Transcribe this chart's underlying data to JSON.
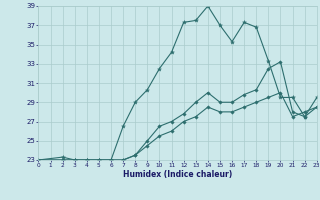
{
  "xlabel": "Humidex (Indice chaleur)",
  "bg_color": "#cce8ea",
  "grid_color": "#aacccc",
  "line_color": "#2d6e6e",
  "ylim": [
    23,
    39
  ],
  "xlim": [
    0,
    23
  ],
  "yticks": [
    23,
    25,
    27,
    29,
    31,
    33,
    35,
    37,
    39
  ],
  "xticks": [
    0,
    1,
    2,
    3,
    4,
    5,
    6,
    7,
    8,
    9,
    10,
    11,
    12,
    13,
    14,
    15,
    16,
    17,
    18,
    19,
    20,
    21,
    22,
    23
  ],
  "line1_x": [
    0,
    2,
    3,
    4,
    5,
    6,
    7,
    8,
    9,
    10,
    11,
    12,
    13,
    14,
    15,
    16,
    17,
    18,
    19,
    20,
    21,
    22,
    23
  ],
  "line1_y": [
    23,
    23.3,
    23,
    23,
    23,
    23,
    26.5,
    29,
    30.3,
    32.5,
    34.2,
    37.3,
    37.5,
    39,
    37,
    35.3,
    37.3,
    36.8,
    33.3,
    29.5,
    29.5,
    27.5,
    29.5
  ],
  "line2_x": [
    0,
    2,
    3,
    4,
    5,
    6,
    7,
    8,
    9,
    10,
    11,
    12,
    13,
    14,
    15,
    16,
    17,
    18,
    19,
    20,
    21,
    22,
    23
  ],
  "line2_y": [
    23,
    23,
    23,
    23,
    23,
    23,
    23,
    23.5,
    25,
    26.5,
    27,
    27.8,
    29,
    30,
    29,
    29,
    29.8,
    30.3,
    32.5,
    33.2,
    28,
    27.5,
    28.5
  ],
  "line3_x": [
    0,
    2,
    3,
    4,
    5,
    6,
    7,
    8,
    9,
    10,
    11,
    12,
    13,
    14,
    15,
    16,
    17,
    18,
    19,
    20,
    21,
    22,
    23
  ],
  "line3_y": [
    23,
    23,
    23,
    23,
    23,
    23,
    23,
    23.5,
    24.5,
    25.5,
    26,
    27,
    27.5,
    28.5,
    28,
    28,
    28.5,
    29,
    29.5,
    30,
    27.5,
    28,
    28.5
  ]
}
